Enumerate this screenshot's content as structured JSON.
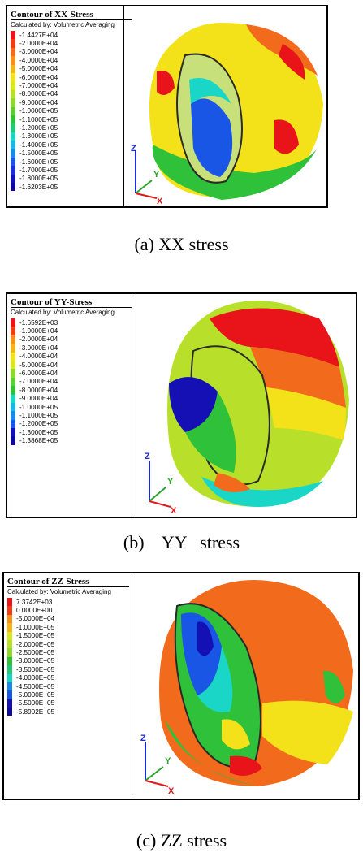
{
  "panels": [
    {
      "title": "Contour of XX-Stress",
      "subtitle": "Calculated by: Volumetric Averaging",
      "legend": [
        "-1.4427E+04",
        "-2.0000E+04",
        "-3.0000E+04",
        "-4.0000E+04",
        "-5.0000E+04",
        "-6.0000E+04",
        "-7.0000E+04",
        "-8.0000E+04",
        "-9.0000E+04",
        "-1.0000E+05",
        "-1.1000E+05",
        "-1.2000E+05",
        "-1.3000E+05",
        "-1.4000E+05",
        "-1.5000E+05",
        "-1.6000E+05",
        "-1.7000E+05",
        "-1.8000E+05",
        "-1.6203E+05"
      ],
      "caption": "(a) XX stress",
      "axes": {
        "z": "Z",
        "y": "Y",
        "x": "X"
      }
    },
    {
      "title": "Contour of YY-Stress",
      "subtitle": "Calculated by: Volumetric Averaging",
      "legend": [
        "-1.6592E+03",
        "-1.0000E+04",
        "-2.0000E+04",
        "-3.0000E+04",
        "-4.0000E+04",
        "-5.0000E+04",
        "-6.0000E+04",
        "-7.0000E+04",
        "-8.0000E+04",
        "-9.0000E+04",
        "-1.0000E+05",
        "-1.1000E+05",
        "-1.2000E+05",
        "-1.3000E+05",
        "-1.3868E+05"
      ],
      "caption": "(b)    YY   stress",
      "axes": {
        "z": "Z",
        "y": "Y",
        "x": "X"
      }
    },
    {
      "title": "Contour of ZZ-Stress",
      "subtitle": "Calculated by: Volumetric Averaging",
      "legend": [
        "7.3742E+03",
        "0.0000E+00",
        "-5.0000E+04",
        "-1.0000E+05",
        "-1.5000E+05",
        "-2.0000E+05",
        "-2.5000E+05",
        "-3.0000E+05",
        "-3.5000E+05",
        "-4.0000E+05",
        "-4.5000E+05",
        "-5.0000E+05",
        "-5.5000E+05",
        "-5.8902E+05"
      ],
      "caption": "(c) ZZ stress",
      "axes": {
        "z": "Z",
        "y": "Y",
        "x": "X"
      }
    }
  ],
  "colors": {
    "red": "#e8141a",
    "orange": "#f26a1b",
    "yellow": "#f3e219",
    "yellowgreen": "#b8e02a",
    "green": "#2fc13a",
    "cyan": "#19d6c6",
    "blue": "#1a56e6",
    "navy": "#1410b4",
    "axis_z": "#1a2ad6",
    "axis_y": "#2aa52a",
    "axis_x": "#e01a1a"
  }
}
